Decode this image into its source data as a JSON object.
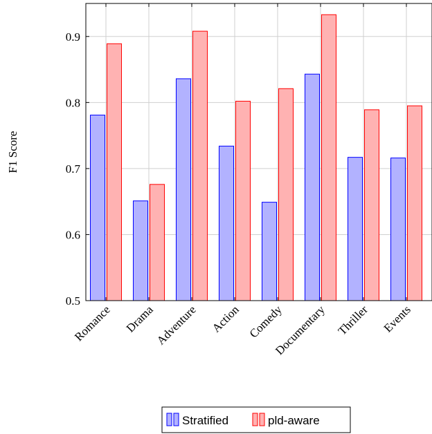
{
  "chart_data": {
    "type": "bar",
    "title": "",
    "xlabel": "",
    "ylabel": "F1 Score",
    "ylim": [
      0.5,
      0.95
    ],
    "yticks": [
      "0.5",
      "0.6",
      "0.7",
      "0.8",
      "0.9"
    ],
    "grid": true,
    "legend_position": "bottom-center",
    "categories": [
      "Romance",
      "Drama",
      "Adventure",
      "Action",
      "Comedy",
      "Documentary",
      "Thriller",
      "Events"
    ],
    "series": [
      {
        "name": "Stratified",
        "color": "#b2b2ff",
        "stroke": "#0000ff",
        "values": [
          0.781,
          0.651,
          0.836,
          0.734,
          0.649,
          0.843,
          0.717,
          0.716
        ]
      },
      {
        "name": "pld-aware",
        "color": "#ffb2b2",
        "stroke": "#ff0000",
        "values": [
          0.889,
          0.676,
          0.908,
          0.802,
          0.821,
          0.933,
          0.789,
          0.795
        ]
      }
    ]
  }
}
